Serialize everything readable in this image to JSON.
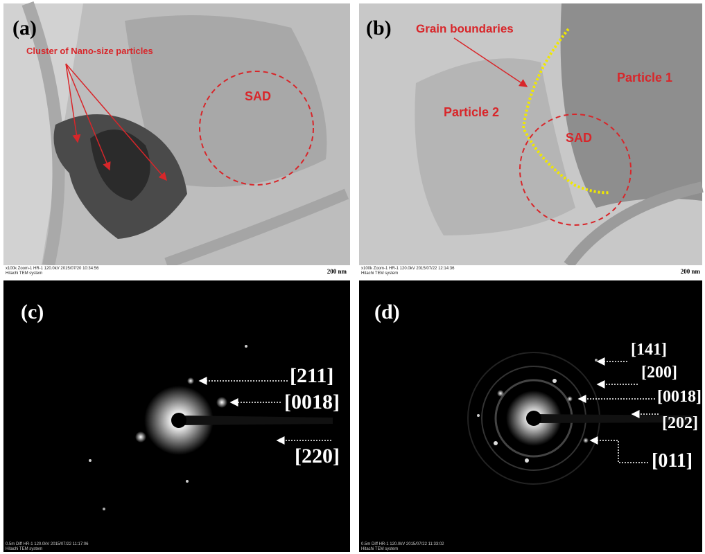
{
  "panels": [
    {
      "label": "(a)",
      "annotations": [
        "Cluster of Nano-size particles",
        "SAD"
      ],
      "scale_bar": "200 nm",
      "footer": [
        "x100k Zoom-1 HR-1 120.0kV 2015/07/20 10:34:56",
        "Hitachi TEM system"
      ]
    },
    {
      "label": "(b)",
      "annotations": [
        "Grain boundaries",
        "Particle 1",
        "Particle 2",
        "SAD"
      ],
      "scale_bar": "200 nm",
      "footer": [
        "x100k Zoom-1 HR-1 120.0kV 2015/07/22 12:14:36",
        "Hitachi TEM system"
      ]
    },
    {
      "label": "(c)",
      "annotations": [
        "[211]",
        "[0018]",
        "[220]"
      ],
      "footer": [
        "0.5m Diff HR-1 120.0kV 2015/07/22 11:17:06",
        "Hitachi TEM system"
      ]
    },
    {
      "label": "(d)",
      "annotations": [
        "[141]",
        "[200]",
        "[0018]",
        "[202]",
        "[011]"
      ],
      "footer": [
        "0.5m Diff HR-1 120.0kV 2015/07/22 11:33:02",
        "Hitachi TEM system"
      ]
    }
  ]
}
